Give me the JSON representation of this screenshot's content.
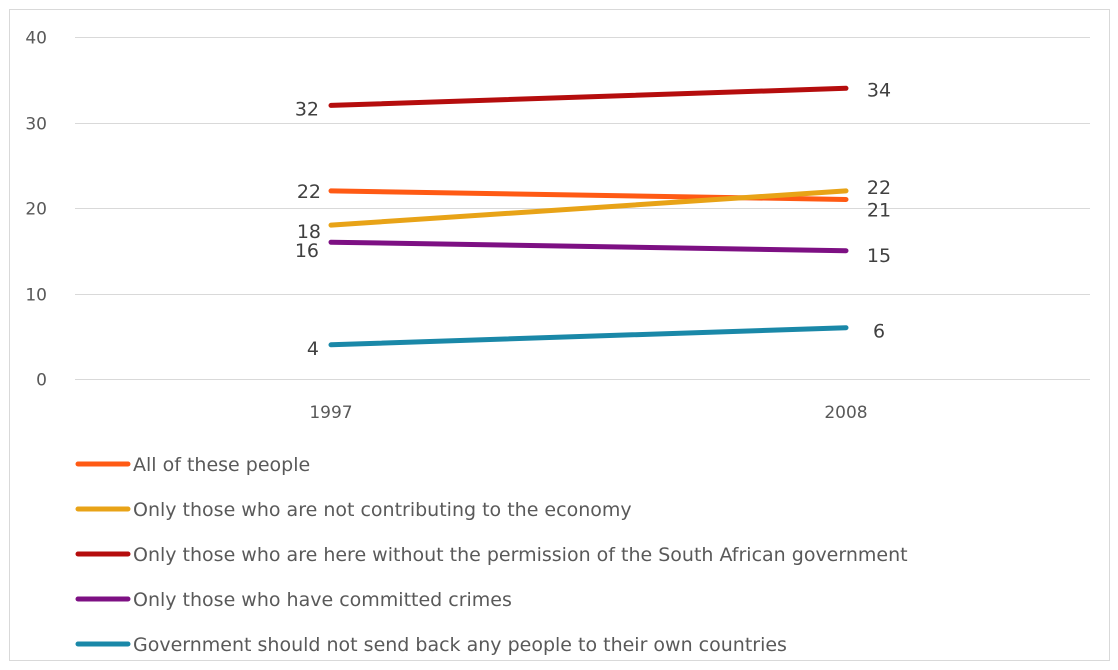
{
  "chart_data": {
    "type": "line",
    "title": "",
    "xlabel": "",
    "ylabel": "",
    "categories": [
      "1997",
      "2008"
    ],
    "ylim": [
      0,
      40
    ],
    "yticks": [
      0,
      10,
      20,
      30,
      40
    ],
    "grid": true,
    "legend_position": "bottom",
    "series": [
      {
        "name": "All of these people",
        "values": [
          22,
          21
        ],
        "color": "#ff5a14"
      },
      {
        "name": "Only those who are not contributing to the economy",
        "values": [
          18,
          22
        ],
        "color": "#e8a317"
      },
      {
        "name": "Only those who are here without the permission of the South African government",
        "values": [
          32,
          34
        ],
        "color": "#b50d0d"
      },
      {
        "name": "Only those who have committed crimes",
        "values": [
          16,
          15
        ],
        "color": "#7d1083"
      },
      {
        "name": "Government should not send back any people to their own countries",
        "values": [
          4,
          6
        ],
        "color": "#1a88a8"
      }
    ]
  }
}
